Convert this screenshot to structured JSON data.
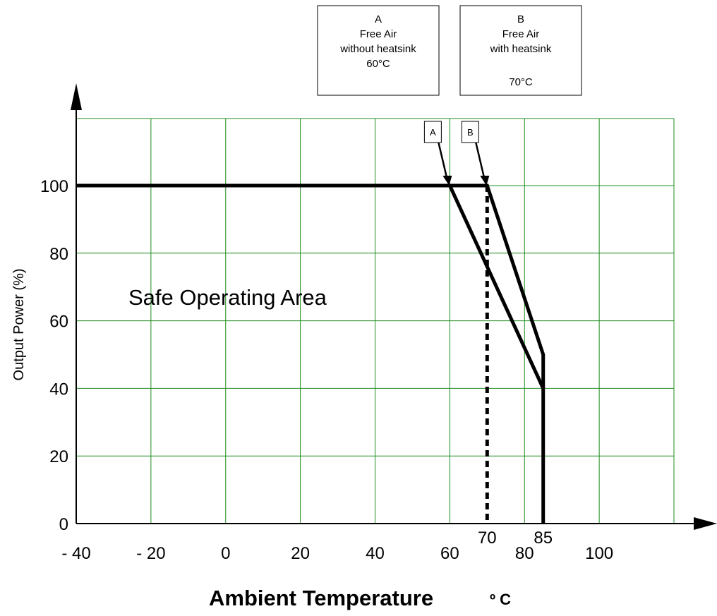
{
  "chart_data": {
    "type": "line",
    "title": "",
    "xlabel": "Ambient Temperature",
    "xlabel_unit": "º C",
    "ylabel": "Output Power (%)",
    "xlim": [
      -40,
      120
    ],
    "ylim": [
      0,
      100
    ],
    "grid": true,
    "grid_color": "#1e8c1e",
    "x_ticks": [
      {
        "value": -40,
        "label": "- 40"
      },
      {
        "value": -20,
        "label": "- 20"
      },
      {
        "value": 0,
        "label": "0"
      },
      {
        "value": 20,
        "label": "20"
      },
      {
        "value": 40,
        "label": "40"
      },
      {
        "value": 60,
        "label": "60"
      },
      {
        "value": 80,
        "label": "80"
      },
      {
        "value": 100,
        "label": "100"
      }
    ],
    "x_extra_ticks": [
      {
        "value": 70,
        "label": "70"
      },
      {
        "value": 85,
        "label": "85"
      }
    ],
    "y_ticks": [
      {
        "value": 0,
        "label": "0"
      },
      {
        "value": 20,
        "label": "20"
      },
      {
        "value": 40,
        "label": "40"
      },
      {
        "value": 60,
        "label": "60"
      },
      {
        "value": 80,
        "label": "80"
      },
      {
        "value": 100,
        "label": "100"
      }
    ],
    "series": [
      {
        "name": "A",
        "points": [
          [
            -40,
            100
          ],
          [
            60,
            100
          ],
          [
            85,
            40
          ],
          [
            85,
            0
          ]
        ]
      },
      {
        "name": "B",
        "points": [
          [
            60,
            100
          ],
          [
            70,
            100
          ],
          [
            85,
            50
          ],
          [
            85,
            40
          ]
        ]
      }
    ],
    "dashed_line": {
      "x": 70,
      "y_from": 0,
      "y_to": 100
    },
    "annotations": {
      "region_label": "Safe Operating Area",
      "legend_boxes": [
        {
          "id": "A",
          "lines": [
            "A",
            "Free Air",
            "without heatsink",
            "60°C"
          ]
        },
        {
          "id": "B",
          "lines": [
            "B",
            "Free Air",
            "with heatsink",
            "70°C"
          ]
        }
      ],
      "markers": [
        {
          "label": "A",
          "x": 60
        },
        {
          "label": "B",
          "x": 70
        }
      ]
    }
  }
}
